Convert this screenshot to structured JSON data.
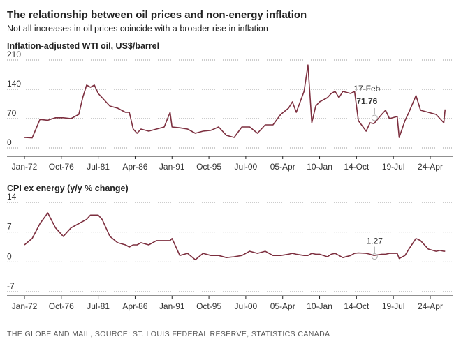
{
  "title": "The relationship between oil prices and non-energy inflation",
  "subtitle": "Not all increases in oil prices coincide with a broader rise in inflation",
  "source": "THE GLOBE AND MAIL, SOURCE: ST. LOUIS FEDERAL RESERVE, STATISTICS CANADA",
  "chart_data": [
    {
      "type": "line",
      "y_label": "Inflation-adjusted WTI oil, US$/barrel",
      "x": [
        "Jan-72",
        "Jan-73",
        "Jan-74",
        "Jan-75",
        "Jan-76",
        "Jan-77",
        "Jan-78",
        "Jan-79",
        "Jul-79",
        "Jan-80",
        "Jul-80",
        "Jan-81",
        "Jul-81",
        "Jan-82",
        "Jan-83",
        "Jan-84",
        "Jan-85",
        "Jul-85",
        "Jan-86",
        "Jul-86",
        "Jan-87",
        "Jan-88",
        "Jan-89",
        "Jan-90",
        "Oct-90",
        "Jan-91",
        "Jan-92",
        "Jan-93",
        "Jan-94",
        "Jan-95",
        "Jan-96",
        "Jan-97",
        "Jan-98",
        "Jan-99",
        "Jan-00",
        "Jan-01",
        "Jan-02",
        "Jan-03",
        "Jan-04",
        "Jan-05",
        "Jan-06",
        "Jul-06",
        "Jan-07",
        "Jan-08",
        "Jul-08",
        "Jan-09",
        "Jul-09",
        "Jan-10",
        "Jan-11",
        "Jul-11",
        "Jan-12",
        "Jul-12",
        "Jan-13",
        "Jan-14",
        "Jul-14",
        "Jan-15",
        "Jan-16",
        "Jul-16",
        "Jan-17",
        "Jan-18",
        "Jul-18",
        "Jan-19",
        "Jan-20",
        "Apr-20",
        "Jan-21",
        "Jul-21",
        "Jun-22",
        "Jan-23",
        "Jan-24",
        "Jan-25",
        "Jul-25",
        "Jan-26",
        "Mar-26"
      ],
      "series": [
        {
          "color": "#7d2f3f",
          "values": [
            25,
            24,
            68,
            66,
            72,
            72,
            70,
            80,
            120,
            150,
            145,
            150,
            130,
            120,
            100,
            95,
            85,
            85,
            45,
            35,
            45,
            40,
            45,
            50,
            85,
            50,
            48,
            45,
            35,
            40,
            42,
            50,
            30,
            25,
            50,
            50,
            35,
            55,
            55,
            80,
            95,
            110,
            85,
            135,
            198,
            60,
            100,
            110,
            120,
            130,
            135,
            120,
            135,
            130,
            135,
            65,
            40,
            60,
            58,
            80,
            90,
            70,
            75,
            25,
            65,
            85,
            125,
            90,
            85,
            80,
            70,
            60,
            92
          ]
        }
      ],
      "xlim": [
        "Jan-72",
        "Jul-26"
      ],
      "xticks": [
        "Jan-72",
        "Oct-76",
        "Jul-81",
        "Apr-86",
        "Jan-91",
        "Oct-95",
        "Jul-00",
        {
          "value": "Apr-05",
          "label": "05-Apr"
        },
        {
          "value": "Jan-10",
          "label": "10-Jan"
        },
        {
          "value": "Oct-14",
          "label": "14-Oct"
        },
        {
          "value": "Jul-19",
          "label": "19-Jul"
        },
        {
          "value": "Apr-24",
          "label": "24-Apr"
        }
      ],
      "ylim": [
        0,
        210
      ],
      "yticks": [
        0,
        70,
        140,
        210
      ],
      "grid": true,
      "annotation": {
        "x": "Feb-17",
        "label": "17-Feb",
        "value": 71.76
      }
    },
    {
      "type": "line",
      "y_label": "CPI ex energy (y/y % change)",
      "x": [
        "Jan-72",
        "Jan-73",
        "Jan-74",
        "Jan-75",
        "Jan-76",
        "Jan-77",
        "Jan-78",
        "Jan-79",
        "Jul-79",
        "Jan-80",
        "Jul-80",
        "Jan-81",
        "Jul-81",
        "Jan-82",
        "Jan-83",
        "Jan-84",
        "Jan-85",
        "Jul-85",
        "Jan-86",
        "Jul-86",
        "Jan-87",
        "Jan-88",
        "Jan-89",
        "Jan-90",
        "Oct-90",
        "Jan-91",
        "Jan-92",
        "Jan-93",
        "Jan-94",
        "Jan-95",
        "Jan-96",
        "Jan-97",
        "Jan-98",
        "Jan-99",
        "Jan-00",
        "Jan-01",
        "Jan-02",
        "Jan-03",
        "Jan-04",
        "Jan-05",
        "Jan-06",
        "Jul-06",
        "Jan-07",
        "Jan-08",
        "Jul-08",
        "Jan-09",
        "Jul-09",
        "Jan-10",
        "Jan-11",
        "Jul-11",
        "Jan-12",
        "Jul-12",
        "Jan-13",
        "Jan-14",
        "Jul-14",
        "Jan-15",
        "Jan-16",
        "Jul-16",
        "Jan-17",
        "Jan-18",
        "Jul-18",
        "Jan-19",
        "Jan-20",
        "Apr-20",
        "Jan-21",
        "Jul-21",
        "Jun-22",
        "Jan-23",
        "Jan-24",
        "Jan-25",
        "Jul-25",
        "Jan-26",
        "Mar-26"
      ],
      "series": [
        {
          "color": "#7d2f3f",
          "values": [
            4,
            5.5,
            9,
            11.5,
            8,
            6,
            8,
            9,
            9.5,
            10,
            11,
            11,
            11,
            10,
            6,
            4.5,
            4,
            3.5,
            4,
            4,
            4.5,
            4,
            5,
            5,
            5,
            5.5,
            1.5,
            2,
            0.5,
            2,
            1.5,
            1.5,
            1,
            1.2,
            1.5,
            2.5,
            2,
            2.5,
            1.5,
            1.5,
            1.8,
            2,
            1.8,
            1.5,
            1.5,
            2,
            1.8,
            1.8,
            1.2,
            1.8,
            2,
            1.5,
            1,
            1.5,
            2,
            2.1,
            2,
            1.8,
            1.5,
            1.8,
            1.8,
            2,
            2,
            0.8,
            1.5,
            3,
            5.5,
            5,
            3,
            2.5,
            2.7,
            2.5,
            2.5
          ]
        }
      ],
      "xlim": [
        "Jan-72",
        "Jul-26"
      ],
      "xticks": [
        "Jan-72",
        "Oct-76",
        "Jul-81",
        "Apr-86",
        "Jan-91",
        "Oct-95",
        "Jul-00",
        {
          "value": "Apr-05",
          "label": "05-Apr"
        },
        {
          "value": "Jan-10",
          "label": "10-Jan"
        },
        {
          "value": "Oct-14",
          "label": "14-Oct"
        },
        {
          "value": "Jul-19",
          "label": "19-Jul"
        },
        {
          "value": "Apr-24",
          "label": "24-Apr"
        }
      ],
      "ylim": [
        -7,
        14
      ],
      "yticks": [
        -7,
        0,
        7,
        14
      ],
      "grid": true,
      "annotation": {
        "x": "Feb-17",
        "value": 1.27
      }
    }
  ]
}
